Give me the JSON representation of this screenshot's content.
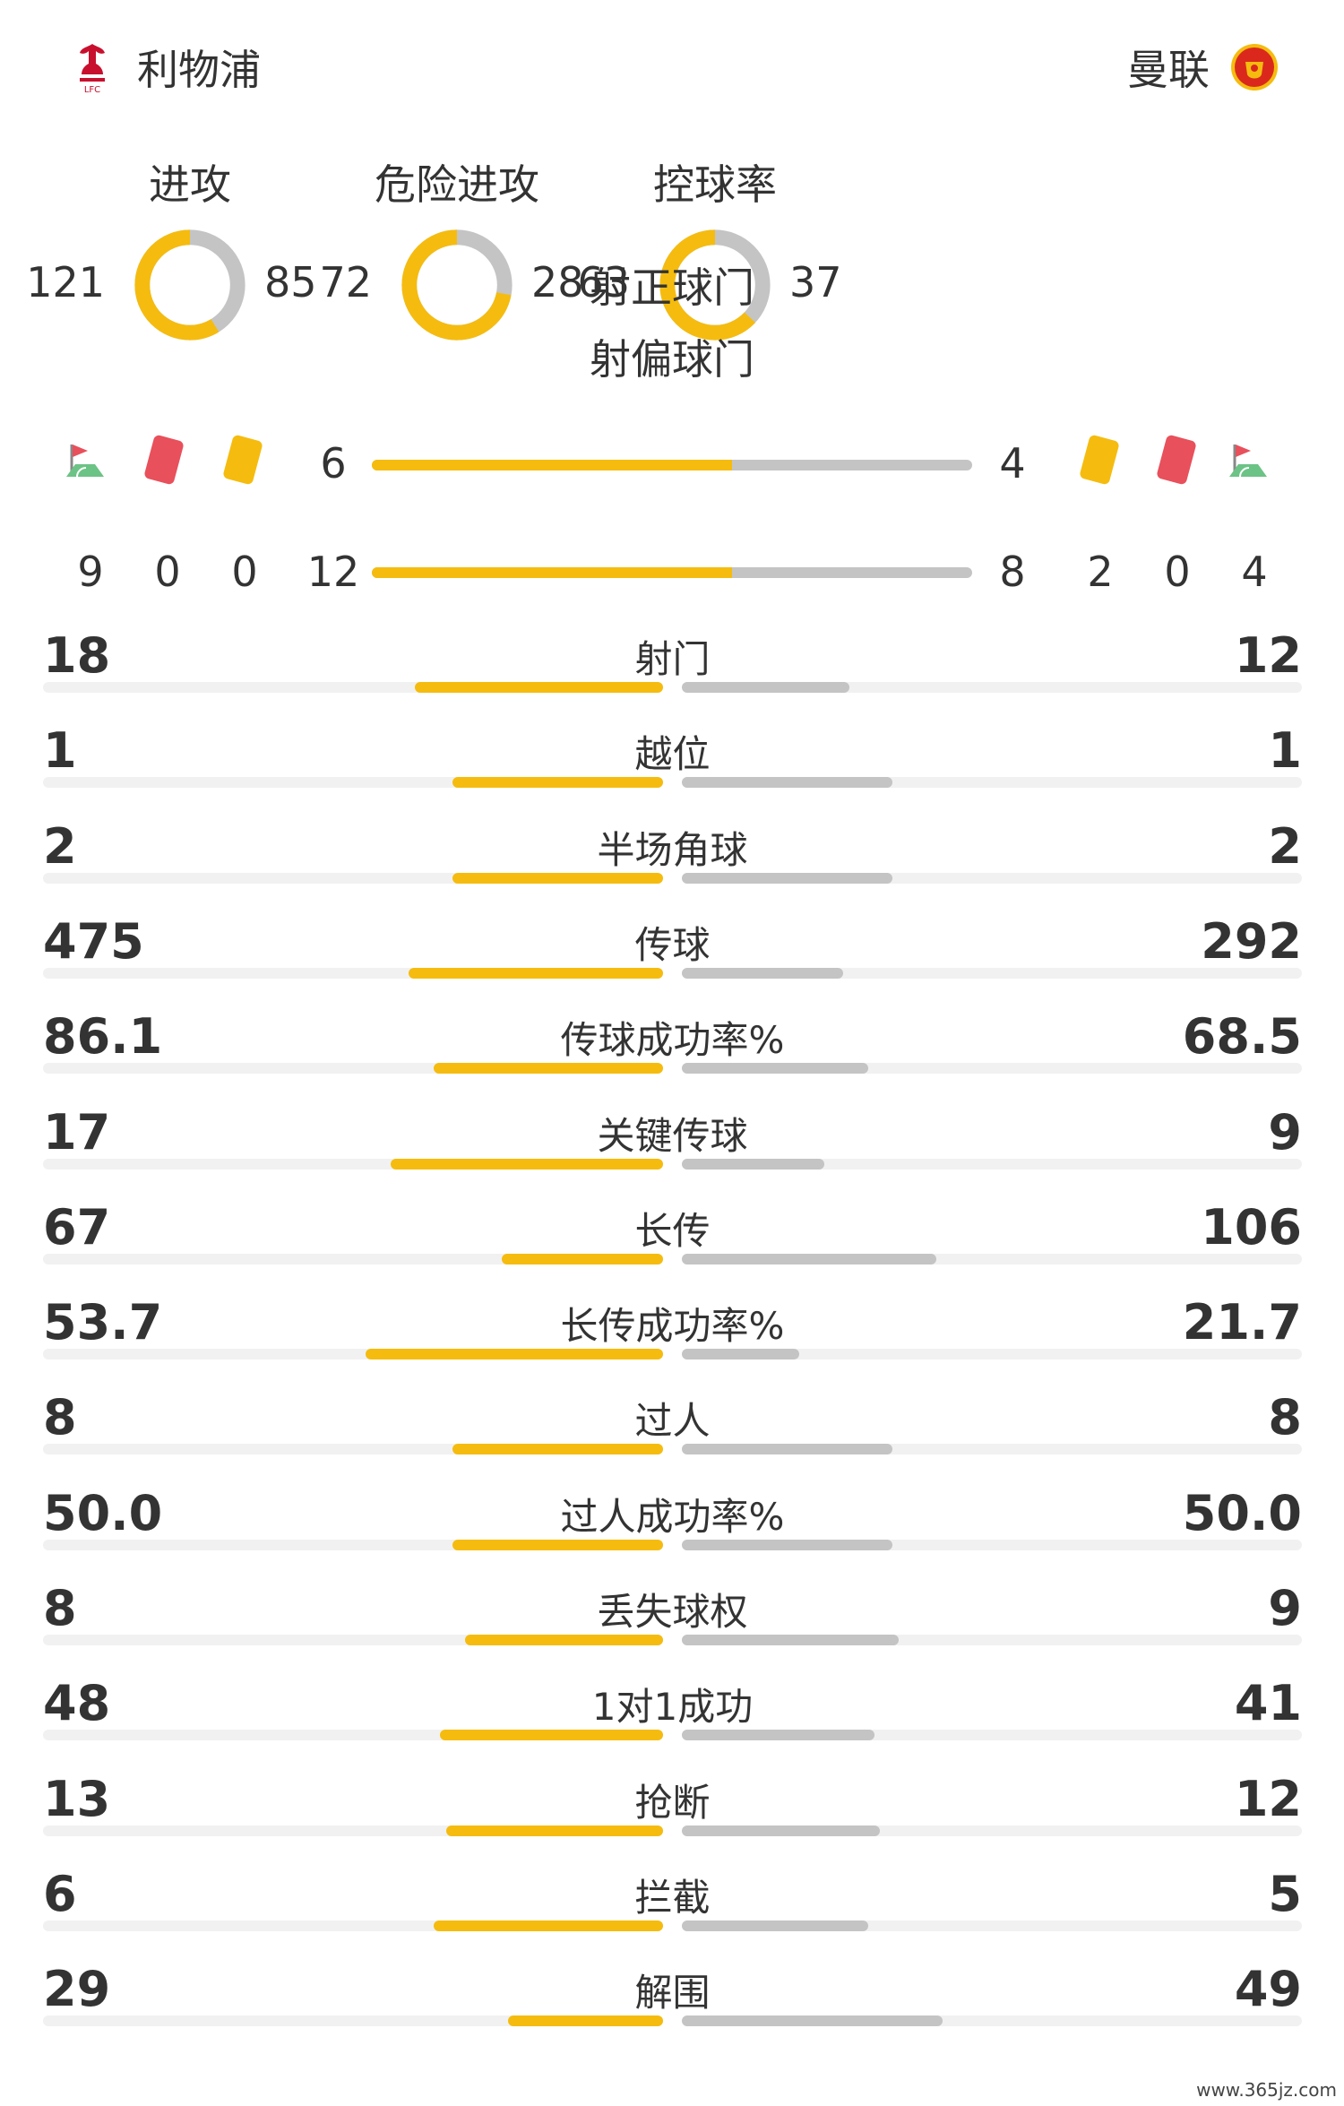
{
  "colors": {
    "home": "#f5bc0f",
    "away": "#c4c4c4",
    "track": "#f1f1f1",
    "liverpool_red": "#c8102e",
    "manutd_red": "#da291c"
  },
  "home": {
    "name": "利物浦",
    "crest": "liverpool-crest"
  },
  "away": {
    "name": "曼联",
    "crest": "manchester-united-crest"
  },
  "donuts": [
    {
      "title": "进攻",
      "home": 121,
      "away": 85
    },
    {
      "title": "危险进攻",
      "home": 72,
      "away": 28
    },
    {
      "title": "控球率",
      "home": 63,
      "away": 37
    }
  ],
  "discipline": {
    "shots_on": {
      "title": "射正球门",
      "home": 6,
      "away": 4
    },
    "shots_off": {
      "title": "射偏球门",
      "home": 12,
      "away": 8
    },
    "icons": {
      "corner": "corner-flag-icon",
      "red": "red-card-icon",
      "yellow": "yellow-card-icon"
    },
    "home_corners": 9,
    "home_red": 0,
    "home_yellow": 0,
    "away_yellow": 2,
    "away_red": 0,
    "away_corners": 4
  },
  "stats": [
    {
      "label": "射门",
      "home": "18",
      "away": "12",
      "home_ratio": 0.4,
      "away_ratio": 0.27
    },
    {
      "label": "越位",
      "home": "1",
      "away": "1",
      "home_ratio": 0.34,
      "away_ratio": 0.34
    },
    {
      "label": "半场角球",
      "home": "2",
      "away": "2",
      "home_ratio": 0.34,
      "away_ratio": 0.34
    },
    {
      "label": "传球",
      "home": "475",
      "away": "292",
      "home_ratio": 0.41,
      "away_ratio": 0.26
    },
    {
      "label": "传球成功率%",
      "home": "86.1",
      "away": "68.5",
      "home_ratio": 0.37,
      "away_ratio": 0.3
    },
    {
      "label": "关键传球",
      "home": "17",
      "away": "9",
      "home_ratio": 0.44,
      "away_ratio": 0.23
    },
    {
      "label": "长传",
      "home": "67",
      "away": "106",
      "home_ratio": 0.26,
      "away_ratio": 0.41
    },
    {
      "label": "长传成功率%",
      "home": "53.7",
      "away": "21.7",
      "home_ratio": 0.48,
      "away_ratio": 0.19
    },
    {
      "label": "过人",
      "home": "8",
      "away": "8",
      "home_ratio": 0.34,
      "away_ratio": 0.34
    },
    {
      "label": "过人成功率%",
      "home": "50.0",
      "away": "50.0",
      "home_ratio": 0.34,
      "away_ratio": 0.34
    },
    {
      "label": "丢失球权",
      "home": "8",
      "away": "9",
      "home_ratio": 0.32,
      "away_ratio": 0.35
    },
    {
      "label": "1对1成功",
      "home": "48",
      "away": "41",
      "home_ratio": 0.36,
      "away_ratio": 0.31
    },
    {
      "label": "抢断",
      "home": "13",
      "away": "12",
      "home_ratio": 0.35,
      "away_ratio": 0.32
    },
    {
      "label": "拦截",
      "home": "6",
      "away": "5",
      "home_ratio": 0.37,
      "away_ratio": 0.3
    },
    {
      "label": "解围",
      "home": "29",
      "away": "49",
      "home_ratio": 0.25,
      "away_ratio": 0.42
    }
  ],
  "watermark": "www.365jz.com"
}
